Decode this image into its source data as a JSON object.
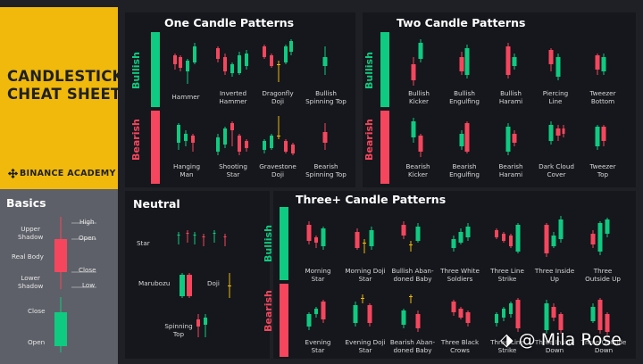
{
  "brand": {
    "title_line1": "CANDLESTICK",
    "title_line2": "CHEAT SHEET",
    "academy": "BINANCE ACADEMY",
    "logo_icon": "binance-diamond-icon"
  },
  "colors": {
    "bull": "#0ecb81",
    "bear": "#f6465d",
    "neutral": "#f0b90b",
    "background": "#1e2026",
    "brand": "#f0b90b"
  },
  "basics": {
    "title": "Basics",
    "labels": {
      "upper_shadow": "Upper\nShadow",
      "real_body": "Real Body",
      "lower_shadow": "Lower\nShadow",
      "high": "High",
      "open": "Open",
      "close": "Close",
      "low": "Low",
      "close2": "Close",
      "open2": "Open"
    }
  },
  "sections": {
    "one_candle": "One Candle Patterns",
    "two_candle": "Two Candle Patterns",
    "neutral": "Neutral",
    "three_plus": "Three+ Candle Patterns",
    "bullish": "Bullish",
    "bearish": "Bearish"
  },
  "one_bull": [
    "Hammer",
    "Inverted\nHammer",
    "Dragonfly\nDoji",
    "Bullish\nSpinning Top"
  ],
  "one_bear": [
    "Hanging\nMan",
    "Shooting\nStar",
    "Gravestone\nDoji",
    "Bearish\nSpinning Top"
  ],
  "two_bull": [
    "Bullish\nKicker",
    "Bullish\nEngulfing",
    "Bullish\nHarami",
    "Piercing\nLine",
    "Tweezer\nBottom"
  ],
  "two_bear": [
    "Bearish\nKicker",
    "Bearish\nEngulfing",
    "Bearish\nHarami",
    "Dark Cloud\nCover",
    "Tweezer\nTop"
  ],
  "neutral_items": {
    "star": "Star",
    "marubozu": "Marubozu",
    "doji": "Doji",
    "spinning_top": "Spinning\nTop"
  },
  "three_bull": [
    "Morning\nStar",
    "Morning Doji\nStar",
    "Bullish Aban-\ndoned Baby",
    "Three White\nSoldiers",
    "Three Line\nStrike",
    "Three Inside\nUp",
    "Three\nOutside Up"
  ],
  "three_bear": [
    "Evening\nStar",
    "Evening Doji\nStar",
    "Bearish Aban-\ndoned Baby",
    "Three Black\nCrows",
    "Three Line\nStrike",
    "Three Inside\nDown",
    "Three Outside\nDown"
  ],
  "watermark": "@ Mila Rose"
}
